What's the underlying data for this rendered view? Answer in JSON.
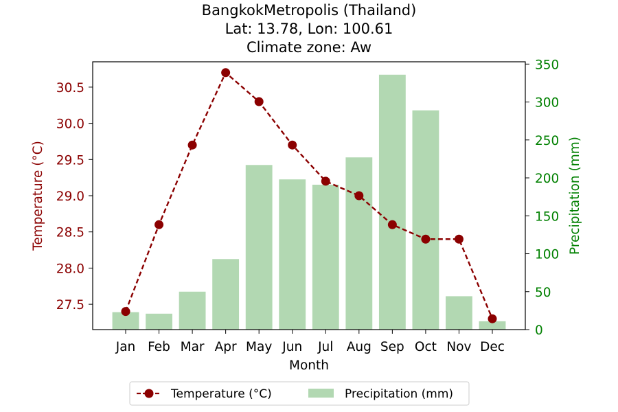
{
  "chart_data": {
    "type": "bar+line",
    "title_lines": [
      "BangkokMetropolis (Thailand)",
      "Lat: 13.78, Lon: 100.61",
      "Climate zone: Aw"
    ],
    "xlabel": "Month",
    "categories": [
      "Jan",
      "Feb",
      "Mar",
      "Apr",
      "May",
      "Jun",
      "Jul",
      "Aug",
      "Sep",
      "Oct",
      "Nov",
      "Dec"
    ],
    "temperature": {
      "name": "Temperature (°C)",
      "axis_label": "Temperature (°C)",
      "color": "#8b0000",
      "values": [
        27.4,
        28.6,
        29.7,
        30.7,
        30.3,
        29.7,
        29.2,
        29.0,
        28.6,
        28.4,
        28.4,
        27.3
      ],
      "ylim": [
        27.15,
        30.85
      ],
      "ticks": [
        "27.5",
        "28.0",
        "28.5",
        "29.0",
        "29.5",
        "30.0",
        "30.5"
      ]
    },
    "precipitation": {
      "name": "Precipitation (mm)",
      "axis_label": "Precipitation (mm)",
      "color": "#008000",
      "bar_color": "#b2d8b2",
      "values": [
        23,
        21,
        50,
        93,
        217,
        198,
        191,
        227,
        336,
        289,
        44,
        11
      ],
      "ylim": [
        0,
        353
      ],
      "ticks": [
        "0",
        "50",
        "100",
        "150",
        "200",
        "250",
        "300",
        "350"
      ]
    },
    "legend": {
      "placement": "bottom-center",
      "entries": [
        "Temperature (°C)",
        "Precipitation (mm)"
      ]
    },
    "grid": false
  }
}
